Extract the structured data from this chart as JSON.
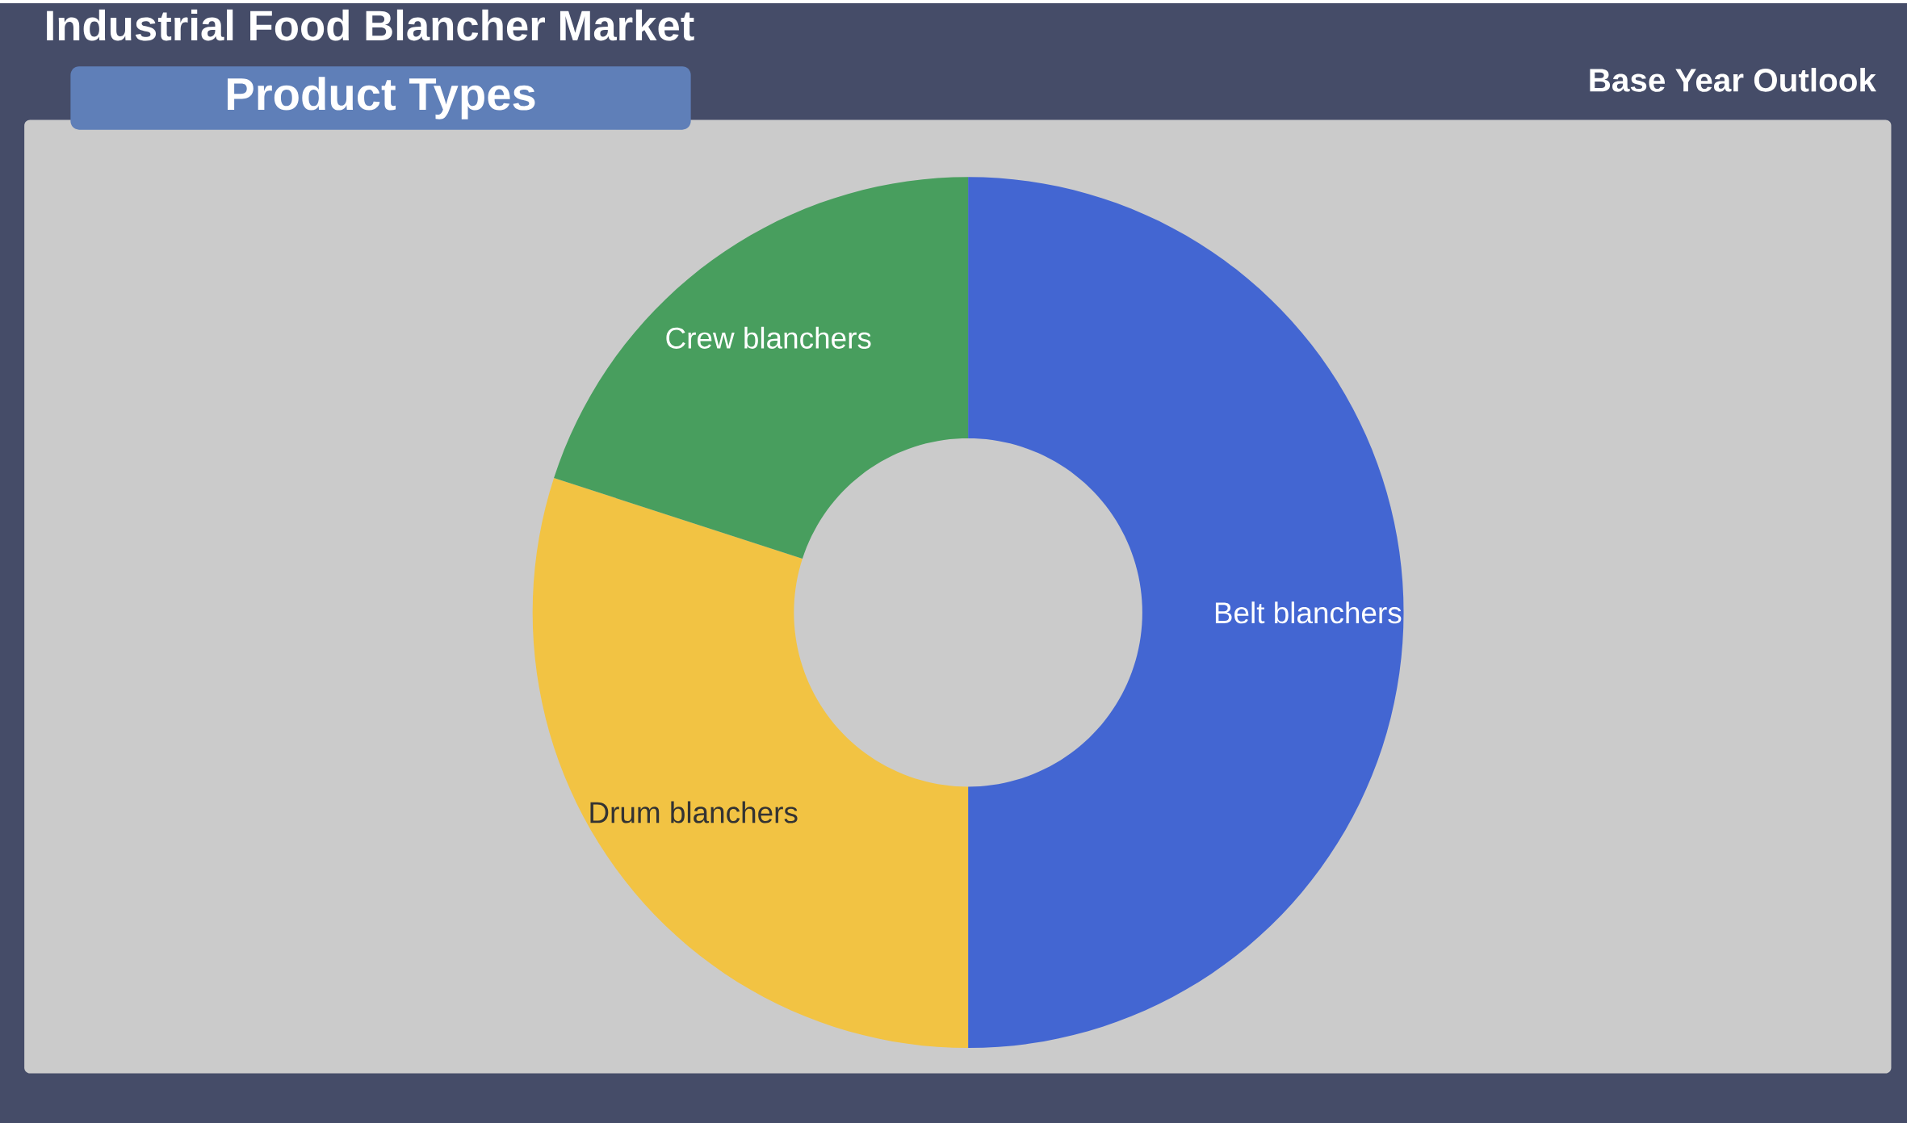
{
  "chart_data": {
    "type": "donut",
    "title": "Industrial Food Blancher Market",
    "subtitle": "Product Types",
    "annotations": [
      "Base Year Outlook"
    ],
    "categories": [
      "Belt blanchers",
      "Drum blanchers",
      "Crew blanchers"
    ],
    "values": [
      50,
      30,
      20
    ],
    "colors": [
      "#4366d2",
      "#f2c343",
      "#489e5e"
    ]
  }
}
